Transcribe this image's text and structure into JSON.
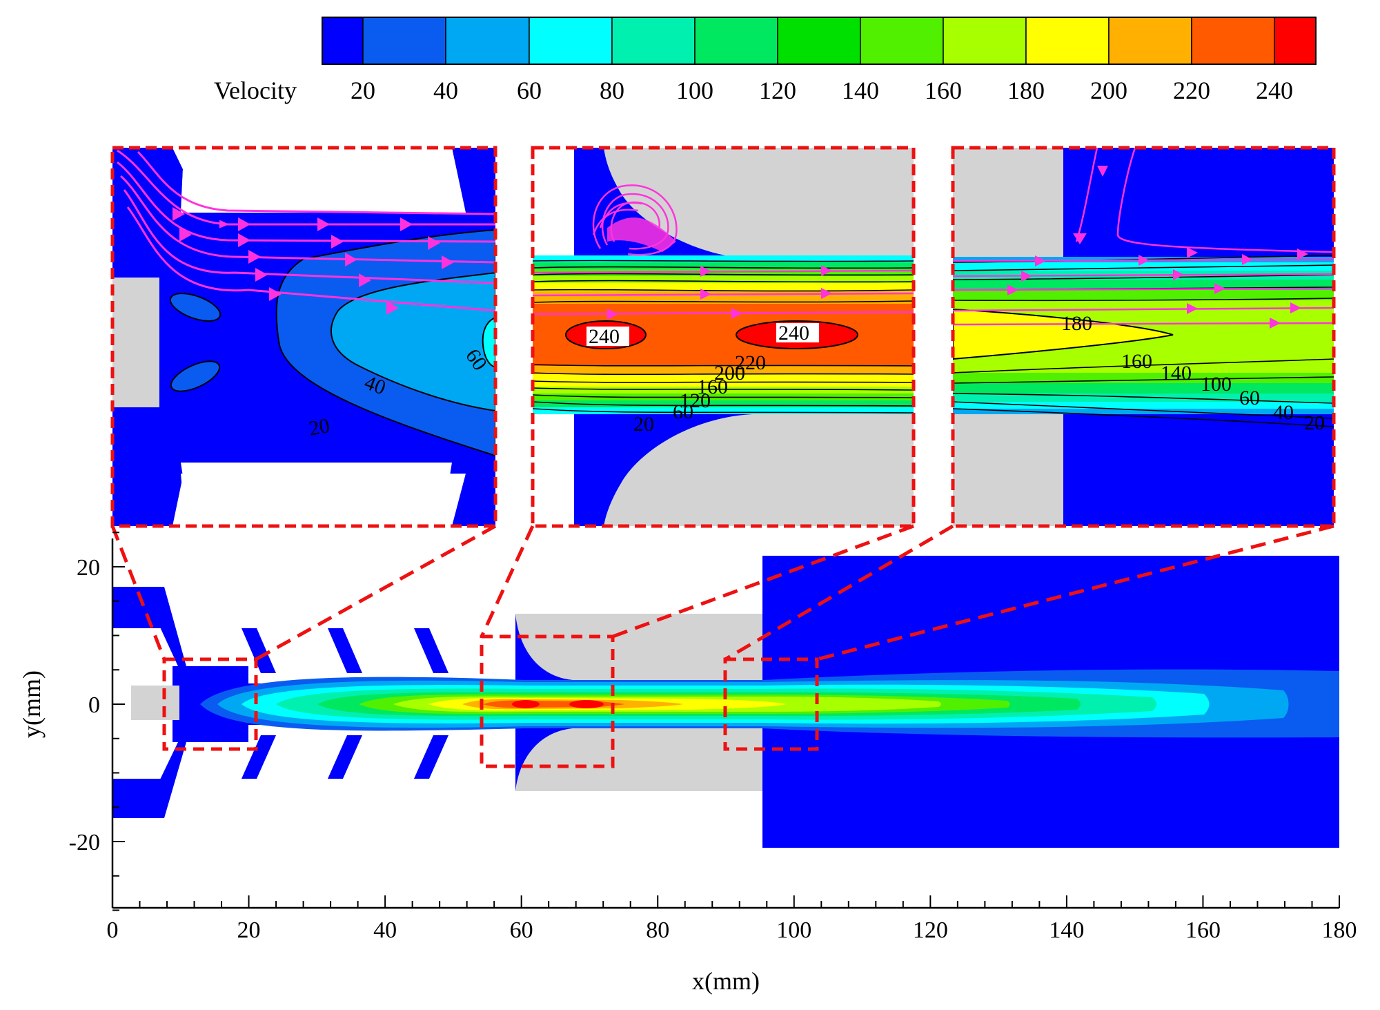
{
  "chart_data": {
    "type": "contour",
    "colorbar": {
      "title": "Velocity",
      "ticks": [
        20,
        40,
        60,
        80,
        100,
        120,
        140,
        160,
        180,
        200,
        220,
        240
      ],
      "colors": [
        "#0000ff",
        "#0a5cf0",
        "#00a8f4",
        "#00ffff",
        "#00f0b0",
        "#00e860",
        "#00e000",
        "#50f000",
        "#a8ff00",
        "#ffff00",
        "#ffb000",
        "#ff5a00",
        "#ff0000"
      ]
    },
    "main": {
      "xlabel": "x(mm)",
      "ylabel": "y(mm)",
      "xlim": [
        0,
        180
      ],
      "ylim": [
        -30,
        25
      ],
      "xticks": [
        0,
        20,
        40,
        60,
        80,
        100,
        120,
        140,
        160,
        180
      ],
      "yticks": [
        20,
        0,
        -20
      ],
      "zoom_boxes_mm": [
        {
          "x": [
            7.5,
            21
          ],
          "y": [
            -6.5,
            6.5
          ]
        },
        {
          "x": [
            54,
            73
          ],
          "y": [
            -9,
            9.5
          ]
        },
        {
          "x": [
            89.5,
            103
          ],
          "y": [
            -6.5,
            6.5
          ]
        }
      ],
      "peak_regions_x_mm": [
        60,
        69
      ]
    },
    "insets": [
      {
        "contour_labels": [
          "60",
          "40",
          "20"
        ]
      },
      {
        "contour_labels": [
          "240",
          "240",
          "220",
          "200",
          "160",
          "120",
          "60",
          "20"
        ]
      },
      {
        "contour_labels": [
          "180",
          "160",
          "140",
          "100",
          "60",
          "40",
          "20"
        ]
      }
    ],
    "colors": {
      "wall": "#d3d3d3",
      "frame": "#ee1111",
      "streamline": "#ff33dd"
    }
  }
}
